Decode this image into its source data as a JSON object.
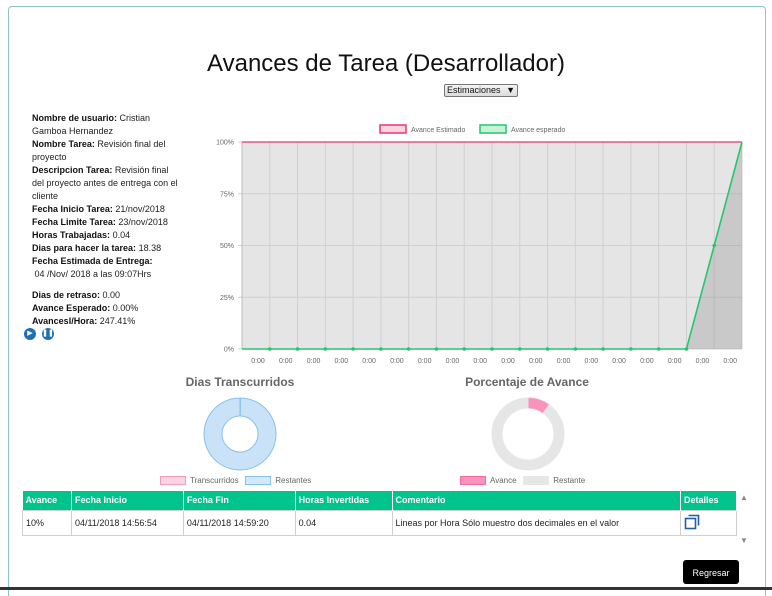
{
  "page": {
    "title": "Avances de Tarea (Desarrollador)"
  },
  "selector": {
    "value": "Estimaciones"
  },
  "info": {
    "usuario_label": "Nombre de usuario:",
    "usuario_value": "Cristian Gamboa Hernandez",
    "tarea_label": "Nombre Tarea:",
    "tarea_value": "Revisión final del proyecto",
    "descripcion_label": "Descripcion Tarea:",
    "descripcion_value": "Revisión final del proyecto antes de entrega con el cliente",
    "inicio_label": "Fecha Inicio Tarea:",
    "inicio_value": "21/nov/2018",
    "limite_label": "Fecha Limite Tarea:",
    "limite_value": "23/nov/2018",
    "horas_label": "Horas Trabajadas:",
    "horas_value": "0.04",
    "dias_label": "Dias para hacer la tarea:",
    "dias_value": "18.38",
    "estimada_label": "Fecha Estimada de Entrega:",
    "estimada_value": "04 /Nov/ 2018 a las 09:07Hrs",
    "retraso_label": "Dias de retraso:",
    "retraso_value": "0.00",
    "esperado_label": "Avance Esperado:",
    "esperado_value": "0.00%",
    "avancehora_label": "AvancesI/Hora:",
    "avancehora_value": "247.41%"
  },
  "media": {
    "play_icon": "play-icon",
    "pause_icon": "pause-icon"
  },
  "chart_data": [
    {
      "type": "line",
      "x": [
        "0:00",
        "0:00",
        "0:00",
        "0:00",
        "0:00",
        "0:00",
        "0:00",
        "0:00",
        "0:00",
        "0:00",
        "0:00",
        "0:00",
        "0:00",
        "0:00",
        "0:00",
        "0:00",
        "0:00",
        "0:00",
        "0:00"
      ],
      "y_ticks": [
        "0%",
        "25%",
        "50%",
        "75%",
        "100%"
      ],
      "ylim": [
        0,
        100
      ],
      "series": [
        {
          "name": "Avance Estimado",
          "color": "#e8366e",
          "values": [
            100,
            100,
            100,
            100,
            100,
            100,
            100,
            100,
            100,
            100,
            100,
            100,
            100,
            100,
            100,
            100,
            100,
            100,
            100
          ]
        },
        {
          "name": "Avance esperado",
          "color": "#22c86b",
          "values": [
            0,
            0,
            0,
            0,
            0,
            0,
            0,
            0,
            0,
            0,
            0,
            0,
            0,
            0,
            0,
            0,
            0,
            50,
            100
          ]
        }
      ],
      "legend_position": "top"
    },
    {
      "type": "pie",
      "title": "Dias Transcurridos",
      "labels": [
        "Transcurridos",
        "Restantes"
      ],
      "values": [
        0.2,
        99.8
      ],
      "colors": [
        "#f7c6d8",
        "#c9e2f7"
      ]
    },
    {
      "type": "pie",
      "title": "Porcentaje de Avance",
      "labels": [
        "Avance",
        "Restante"
      ],
      "values": [
        10,
        90
      ],
      "colors": [
        "#f993bd",
        "#e6e6e6"
      ]
    }
  ],
  "table": {
    "headers": [
      "Avance",
      "Fecha Inicio",
      "Fecha Fin",
      "Horas Invertidas",
      "Comentario",
      "Detalles"
    ],
    "rows": [
      [
        "10%",
        "04/11/2018 14:56:54",
        "04/11/2018 14:59:20",
        "0.04",
        "Lineas por Hora Sólo muestro dos decimales en el valor"
      ]
    ]
  },
  "buttons": {
    "back": "Regresar"
  }
}
